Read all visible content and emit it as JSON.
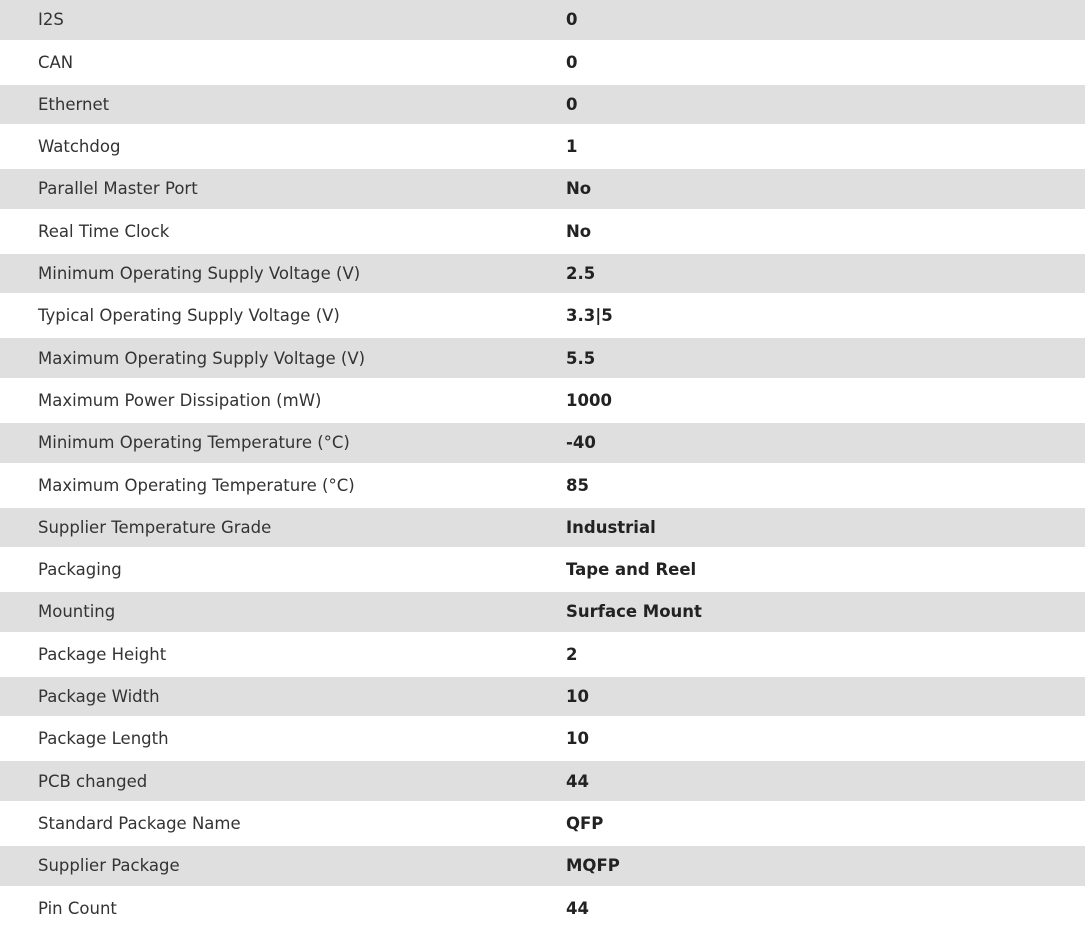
{
  "colors": {
    "stripe": "#dfdfdf",
    "background": "#ffffff"
  },
  "rows": [
    {
      "label": "I2S",
      "value": "0"
    },
    {
      "label": "CAN",
      "value": "0"
    },
    {
      "label": "Ethernet",
      "value": "0"
    },
    {
      "label": "Watchdog",
      "value": "1"
    },
    {
      "label": "Parallel Master Port",
      "value": "No"
    },
    {
      "label": "Real Time Clock",
      "value": "No"
    },
    {
      "label": "Minimum Operating Supply Voltage (V)",
      "value": "2.5"
    },
    {
      "label": "Typical Operating Supply Voltage (V)",
      "value": "3.3|5"
    },
    {
      "label": "Maximum Operating Supply Voltage (V)",
      "value": "5.5"
    },
    {
      "label": "Maximum Power Dissipation (mW)",
      "value": "1000"
    },
    {
      "label": "Minimum Operating Temperature (°C)",
      "value": "-40"
    },
    {
      "label": "Maximum Operating Temperature (°C)",
      "value": "85"
    },
    {
      "label": "Supplier Temperature Grade",
      "value": "Industrial"
    },
    {
      "label": "Packaging",
      "value": "Tape and Reel"
    },
    {
      "label": "Mounting",
      "value": "Surface Mount"
    },
    {
      "label": "Package Height",
      "value": "2"
    },
    {
      "label": "Package Width",
      "value": "10"
    },
    {
      "label": "Package Length",
      "value": "10"
    },
    {
      "label": "PCB changed",
      "value": "44"
    },
    {
      "label": "Standard Package Name",
      "value": "QFP"
    },
    {
      "label": "Supplier Package",
      "value": "MQFP"
    },
    {
      "label": "Pin Count",
      "value": "44"
    }
  ]
}
